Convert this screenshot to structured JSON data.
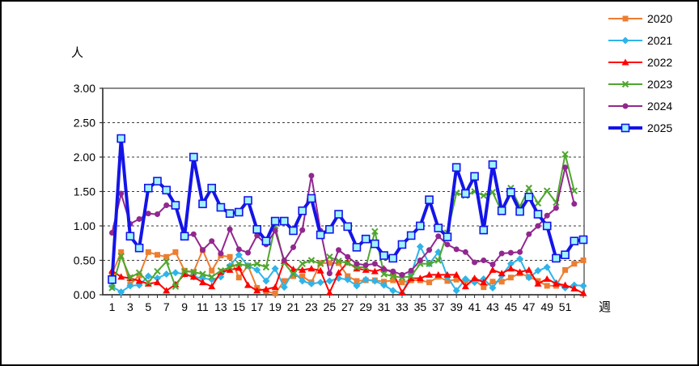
{
  "window": {
    "background": "#FFFFFF",
    "border_color": "#000000"
  },
  "axes": {
    "y_axis_title": "人",
    "x_axis_title": "週",
    "y_tick_labels": [
      "3.00",
      "2.50",
      "2.00",
      "1.50",
      "1.00",
      "0.50",
      "0.00"
    ],
    "x_tick_labels": [
      "1",
      "3",
      "5",
      "7",
      "9",
      "11",
      "13",
      "15",
      "17",
      "19",
      "21",
      "23",
      "25",
      "27",
      "29",
      "31",
      "33",
      "35",
      "37",
      "39",
      "41",
      "43",
      "45",
      "47",
      "49",
      "51"
    ]
  },
  "chart_data": {
    "type": "line",
    "title": "",
    "xlabel": "週",
    "ylabel": "人",
    "weeks": 53,
    "ylim": [
      0,
      3.0
    ],
    "y_tick_step": 0.5,
    "grid": "horizontal dashed gridlines every 0.50",
    "legend_position": "top-right, no border",
    "series": [
      {
        "name": "2020",
        "color": "#ED7D31",
        "marker": "square",
        "line_width": 2,
        "values": [
          0.3,
          0.62,
          0.15,
          0.28,
          0.62,
          0.58,
          0.55,
          0.62,
          0.35,
          0.33,
          0.65,
          0.35,
          0.57,
          0.55,
          0.25,
          0.42,
          0.1,
          0.05,
          0.02,
          0.2,
          0.27,
          0.27,
          0.18,
          0.46,
          0.46,
          0.46,
          0.27,
          0.2,
          0.21,
          0.21,
          0.19,
          0.21,
          0.18,
          0.21,
          0.21,
          0.18,
          0.26,
          0.2,
          0.22,
          0.2,
          0.21,
          0.11,
          0.19,
          0.19,
          0.25,
          0.31,
          0.26,
          0.2,
          0.13,
          0.13,
          0.36,
          0.45,
          0.5
        ]
      },
      {
        "name": "2021",
        "color": "#2FB4E9",
        "marker": "diamond",
        "line_width": 2,
        "values": [
          0.12,
          0.04,
          0.13,
          0.14,
          0.27,
          0.24,
          0.3,
          0.32,
          0.3,
          0.26,
          0.24,
          0.22,
          0.26,
          0.42,
          0.58,
          0.42,
          0.36,
          0.2,
          0.38,
          0.11,
          0.34,
          0.2,
          0.16,
          0.18,
          0.2,
          0.24,
          0.22,
          0.13,
          0.22,
          0.2,
          0.14,
          0.06,
          0.02,
          0.3,
          0.7,
          0.45,
          0.62,
          0.26,
          0.06,
          0.23,
          0.18,
          0.23,
          0.1,
          0.28,
          0.45,
          0.52,
          0.25,
          0.35,
          0.4,
          0.17,
          0.1,
          0.14,
          0.13
        ]
      },
      {
        "name": "2022",
        "color": "#FF0000",
        "marker": "triangle",
        "line_width": 2,
        "values": [
          0.35,
          0.26,
          0.24,
          0.2,
          0.16,
          0.18,
          0.06,
          0.15,
          0.3,
          0.26,
          0.18,
          0.12,
          0.33,
          0.36,
          0.39,
          0.14,
          0.06,
          0.08,
          0.11,
          0.49,
          0.37,
          0.36,
          0.38,
          0.35,
          0.03,
          0.32,
          0.47,
          0.38,
          0.36,
          0.34,
          0.38,
          0.32,
          0.03,
          0.24,
          0.24,
          0.29,
          0.29,
          0.29,
          0.29,
          0.12,
          0.24,
          0.18,
          0.36,
          0.31,
          0.38,
          0.33,
          0.36,
          0.16,
          0.23,
          0.16,
          0.14,
          0.09,
          0.02
        ]
      },
      {
        "name": "2023",
        "color": "#4EA72E",
        "marker": "x",
        "line_width": 2,
        "values": [
          0.1,
          0.56,
          0.25,
          0.32,
          0.18,
          0.34,
          0.48,
          0.12,
          0.34,
          0.33,
          0.3,
          0.26,
          0.35,
          0.4,
          0.45,
          0.42,
          0.45,
          0.4,
          1.0,
          0.46,
          0.3,
          0.45,
          0.5,
          0.45,
          0.55,
          0.49,
          0.46,
          0.4,
          0.4,
          0.92,
          0.3,
          0.27,
          0.25,
          0.27,
          0.45,
          0.45,
          0.5,
          0.9,
          1.48,
          1.44,
          1.5,
          1.44,
          1.49,
          1.2,
          1.55,
          1.28,
          1.55,
          1.33,
          1.51,
          1.34,
          2.04,
          1.51,
          null
        ]
      },
      {
        "name": "2024",
        "color": "#92278F",
        "marker": "circle",
        "line_width": 2,
        "values": [
          0.9,
          1.47,
          1.03,
          1.1,
          1.18,
          1.17,
          1.3,
          1.28,
          0.85,
          0.88,
          0.65,
          0.78,
          0.6,
          0.95,
          0.66,
          0.61,
          0.86,
          0.73,
          0.93,
          0.5,
          0.69,
          0.94,
          1.73,
          0.93,
          0.31,
          0.65,
          0.55,
          0.45,
          0.43,
          0.45,
          0.37,
          0.34,
          0.29,
          0.35,
          0.5,
          0.65,
          0.85,
          0.73,
          0.66,
          0.62,
          0.47,
          0.5,
          0.44,
          0.6,
          0.61,
          0.62,
          0.88,
          1.0,
          1.15,
          1.26,
          1.85,
          1.32,
          null
        ]
      },
      {
        "name": "2025",
        "color": "#1414E8",
        "marker": "square-open",
        "marker_fill": "#9FF3FF",
        "line_width": 4,
        "values": [
          0.22,
          2.27,
          0.85,
          0.68,
          1.55,
          1.65,
          1.52,
          1.3,
          0.85,
          2.0,
          1.32,
          1.55,
          1.27,
          1.18,
          1.2,
          1.37,
          0.95,
          0.78,
          1.07,
          1.07,
          0.93,
          1.22,
          1.4,
          0.87,
          0.95,
          1.17,
          0.99,
          0.69,
          0.81,
          0.74,
          0.57,
          0.53,
          0.73,
          0.86,
          1.0,
          1.38,
          0.97,
          0.84,
          1.85,
          1.47,
          1.72,
          0.94,
          1.89,
          1.22,
          1.49,
          1.21,
          1.42,
          1.17,
          1.0,
          0.53,
          0.58,
          0.78,
          0.8
        ]
      }
    ]
  }
}
